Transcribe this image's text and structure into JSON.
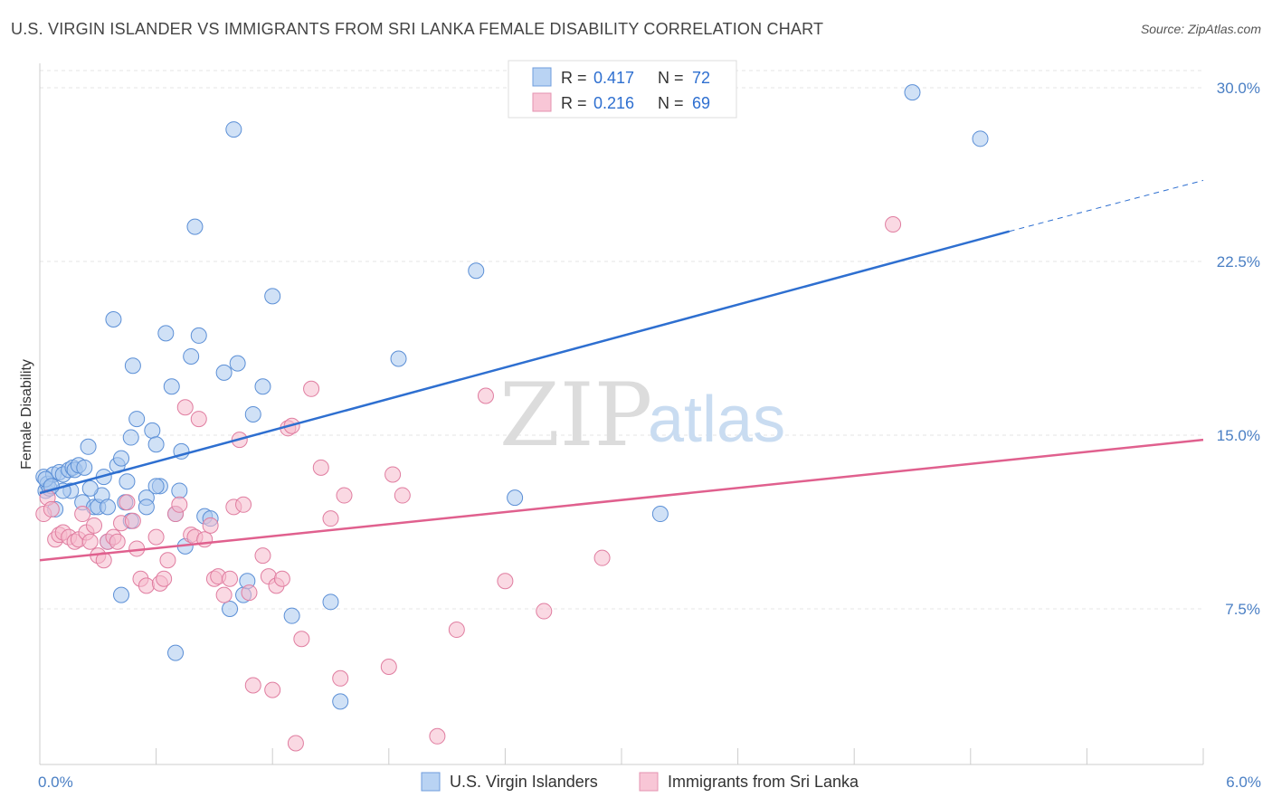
{
  "header": {
    "title": "U.S. VIRGIN ISLANDER VS IMMIGRANTS FROM SRI LANKA FEMALE DISABILITY CORRELATION CHART",
    "source": "Source: ZipAtlas.com"
  },
  "watermark": {
    "zip": "ZIP",
    "atlas": "atlas"
  },
  "legend_top": [
    {
      "r_label": "R =",
      "r_value": "0.417",
      "n_label": "N =",
      "n_value": "72"
    },
    {
      "r_label": "R =",
      "r_value": "0.216",
      "n_label": "N =",
      "n_value": "69"
    }
  ],
  "legend_bottom": [
    {
      "label": "U.S. Virgin Islanders"
    },
    {
      "label": "Immigrants from Sri Lanka"
    }
  ],
  "colors": {
    "blue_fill": "#a9c8ef",
    "blue_stroke": "#5b8fd6",
    "blue_line": "#2e6fd0",
    "pink_fill": "#f6b9cc",
    "pink_stroke": "#e07da0",
    "pink_line": "#e0608e",
    "grid": "#e5e5e5",
    "tick_text": "#4a7fc4"
  },
  "chart_data": {
    "type": "scatter",
    "title": "U.S. VIRGIN ISLANDER VS IMMIGRANTS FROM SRI LANKA FEMALE DISABILITY CORRELATION CHART",
    "xlabel": "",
    "ylabel": "Female Disability",
    "xlim": [
      0,
      6
    ],
    "ylim": [
      0,
      31
    ],
    "x_tick_labels": [
      "0.0%",
      "6.0%"
    ],
    "y_ticks": [
      7.5,
      15.0,
      22.5,
      30.0
    ],
    "y_tick_labels": [
      "7.5%",
      "15.0%",
      "22.5%",
      "30.0%"
    ],
    "grid": true,
    "legend_position": "top-center",
    "series": [
      {
        "name": "U.S. Virgin Islanders",
        "trend": {
          "x0": 0.0,
          "y0": 12.5,
          "x1": 5.0,
          "y1": 23.8,
          "dash_to_x": 6.0,
          "dash_to_y": 26.0
        },
        "points": [
          [
            0.02,
            13.2
          ],
          [
            0.03,
            12.6
          ],
          [
            0.04,
            12.9
          ],
          [
            0.05,
            12.7
          ],
          [
            0.07,
            13.3
          ],
          [
            0.08,
            11.8
          ],
          [
            0.1,
            13.4
          ],
          [
            0.12,
            13.3
          ],
          [
            0.15,
            13.5
          ],
          [
            0.16,
            12.6
          ],
          [
            0.17,
            13.6
          ],
          [
            0.18,
            13.5
          ],
          [
            0.2,
            13.7
          ],
          [
            0.22,
            12.1
          ],
          [
            0.23,
            13.6
          ],
          [
            0.25,
            14.5
          ],
          [
            0.28,
            11.9
          ],
          [
            0.3,
            11.9
          ],
          [
            0.32,
            12.4
          ],
          [
            0.33,
            13.2
          ],
          [
            0.35,
            11.9
          ],
          [
            0.38,
            20.0
          ],
          [
            0.4,
            13.7
          ],
          [
            0.42,
            14.0
          ],
          [
            0.45,
            13.0
          ],
          [
            0.47,
            11.3
          ],
          [
            0.48,
            18.0
          ],
          [
            0.5,
            15.7
          ],
          [
            0.55,
            12.3
          ],
          [
            0.58,
            15.2
          ],
          [
            0.6,
            14.6
          ],
          [
            0.62,
            12.8
          ],
          [
            0.65,
            19.4
          ],
          [
            0.68,
            17.1
          ],
          [
            0.7,
            11.6
          ],
          [
            0.72,
            12.6
          ],
          [
            0.73,
            14.3
          ],
          [
            0.75,
            10.2
          ],
          [
            0.78,
            18.4
          ],
          [
            0.8,
            24.0
          ],
          [
            0.82,
            19.3
          ],
          [
            0.85,
            11.5
          ],
          [
            0.88,
            11.4
          ],
          [
            1.0,
            28.2
          ],
          [
            1.02,
            18.1
          ],
          [
            1.05,
            8.1
          ],
          [
            1.07,
            8.7
          ],
          [
            1.1,
            15.9
          ],
          [
            1.15,
            17.1
          ],
          [
            1.2,
            21.0
          ],
          [
            1.3,
            7.2
          ],
          [
            1.5,
            7.8
          ],
          [
            1.55,
            3.5
          ],
          [
            1.85,
            18.3
          ],
          [
            2.25,
            22.1
          ],
          [
            2.45,
            12.3
          ],
          [
            3.2,
            11.6
          ],
          [
            4.5,
            29.8
          ],
          [
            4.85,
            27.8
          ],
          [
            0.35,
            10.4
          ],
          [
            0.47,
            14.9
          ],
          [
            0.55,
            11.9
          ],
          [
            0.7,
            5.6
          ],
          [
            0.42,
            8.1
          ],
          [
            0.98,
            7.5
          ],
          [
            0.95,
            17.7
          ],
          [
            0.12,
            12.6
          ],
          [
            0.26,
            12.7
          ],
          [
            0.44,
            12.1
          ],
          [
            0.6,
            12.8
          ],
          [
            0.03,
            13.1
          ],
          [
            0.06,
            12.8
          ]
        ]
      },
      {
        "name": "Immigrants from Sri Lanka",
        "trend": {
          "x0": 0.0,
          "y0": 9.6,
          "x1": 6.0,
          "y1": 14.8
        },
        "points": [
          [
            0.02,
            11.6
          ],
          [
            0.04,
            12.3
          ],
          [
            0.06,
            11.8
          ],
          [
            0.08,
            10.5
          ],
          [
            0.1,
            10.7
          ],
          [
            0.12,
            10.8
          ],
          [
            0.15,
            10.6
          ],
          [
            0.18,
            10.4
          ],
          [
            0.2,
            10.5
          ],
          [
            0.22,
            11.6
          ],
          [
            0.24,
            10.8
          ],
          [
            0.26,
            10.4
          ],
          [
            0.28,
            11.1
          ],
          [
            0.3,
            9.8
          ],
          [
            0.33,
            9.6
          ],
          [
            0.35,
            10.4
          ],
          [
            0.38,
            10.6
          ],
          [
            0.4,
            10.4
          ],
          [
            0.42,
            11.2
          ],
          [
            0.45,
            12.1
          ],
          [
            0.48,
            11.3
          ],
          [
            0.5,
            10.1
          ],
          [
            0.52,
            8.8
          ],
          [
            0.55,
            8.5
          ],
          [
            0.6,
            10.6
          ],
          [
            0.62,
            8.6
          ],
          [
            0.64,
            8.8
          ],
          [
            0.66,
            9.6
          ],
          [
            0.7,
            11.6
          ],
          [
            0.72,
            12.0
          ],
          [
            0.75,
            16.2
          ],
          [
            0.78,
            10.7
          ],
          [
            0.8,
            10.6
          ],
          [
            0.82,
            15.7
          ],
          [
            0.85,
            10.5
          ],
          [
            0.88,
            11.1
          ],
          [
            0.9,
            8.8
          ],
          [
            0.92,
            8.9
          ],
          [
            0.95,
            8.1
          ],
          [
            0.98,
            8.8
          ],
          [
            1.0,
            11.9
          ],
          [
            1.03,
            14.8
          ],
          [
            1.05,
            12.0
          ],
          [
            1.08,
            8.2
          ],
          [
            1.1,
            4.2
          ],
          [
            1.15,
            9.8
          ],
          [
            1.18,
            8.9
          ],
          [
            1.2,
            4.0
          ],
          [
            1.22,
            8.5
          ],
          [
            1.25,
            8.8
          ],
          [
            1.28,
            15.3
          ],
          [
            1.3,
            15.4
          ],
          [
            1.32,
            1.7
          ],
          [
            1.35,
            6.2
          ],
          [
            1.4,
            17.0
          ],
          [
            1.45,
            13.6
          ],
          [
            1.5,
            11.4
          ],
          [
            1.55,
            4.5
          ],
          [
            1.57,
            12.4
          ],
          [
            1.8,
            5.0
          ],
          [
            1.82,
            13.3
          ],
          [
            1.87,
            12.4
          ],
          [
            2.05,
            2.0
          ],
          [
            2.15,
            6.6
          ],
          [
            2.3,
            16.7
          ],
          [
            2.4,
            8.7
          ],
          [
            2.6,
            7.4
          ],
          [
            2.9,
            9.7
          ],
          [
            4.4,
            24.1
          ]
        ]
      }
    ]
  }
}
